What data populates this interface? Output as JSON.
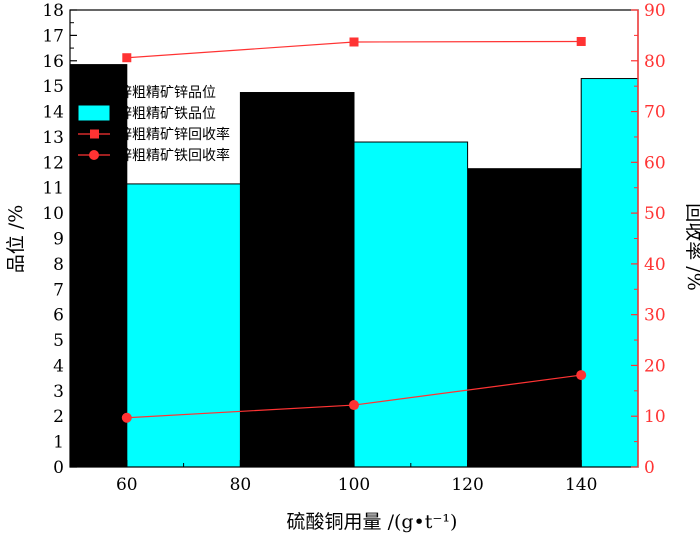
{
  "chart_data": {
    "type": "bar",
    "x": [
      60,
      100,
      140
    ],
    "xlabel": "硫酸铜用量 /(g•t⁻¹)",
    "ylabel": "品位 /%",
    "y2label": "回收率 /%",
    "xlim": [
      50,
      150
    ],
    "ylim": [
      0,
      18
    ],
    "y2lim": [
      0,
      90
    ],
    "x_ticks": [
      "60",
      "80",
      "100",
      "120",
      "140"
    ],
    "x_tick_values": [
      60,
      80,
      100,
      120,
      140
    ],
    "y_ticks": [
      "0",
      "1",
      "2",
      "3",
      "4",
      "5",
      "6",
      "7",
      "8",
      "9",
      "10",
      "11",
      "12",
      "13",
      "14",
      "15",
      "16",
      "17",
      "18"
    ],
    "y2_ticks": [
      "0",
      "10",
      "20",
      "30",
      "40",
      "50",
      "60",
      "70",
      "80",
      "90"
    ],
    "legend_placement": "upper-left",
    "grid": false,
    "series": [
      {
        "name": "锌粗精矿锌品位",
        "kind": "bar",
        "axis": "left",
        "color": "#000000",
        "values": [
          15.85,
          14.75,
          11.75
        ]
      },
      {
        "name": "锌粗精矿铁品位",
        "kind": "bar",
        "axis": "left",
        "color": "#00ffff",
        "values": [
          11.15,
          12.8,
          15.3
        ]
      },
      {
        "name": "锌粗精矿锌回收率",
        "kind": "line",
        "marker": "square",
        "axis": "right",
        "color": "#ff3333",
        "values": [
          80.6,
          83.7,
          83.8
        ]
      },
      {
        "name": "锌粗精矿铁回收率",
        "kind": "line",
        "marker": "circle",
        "axis": "right",
        "color": "#ff3333",
        "values": [
          9.7,
          12.2,
          18.1
        ]
      }
    ]
  }
}
